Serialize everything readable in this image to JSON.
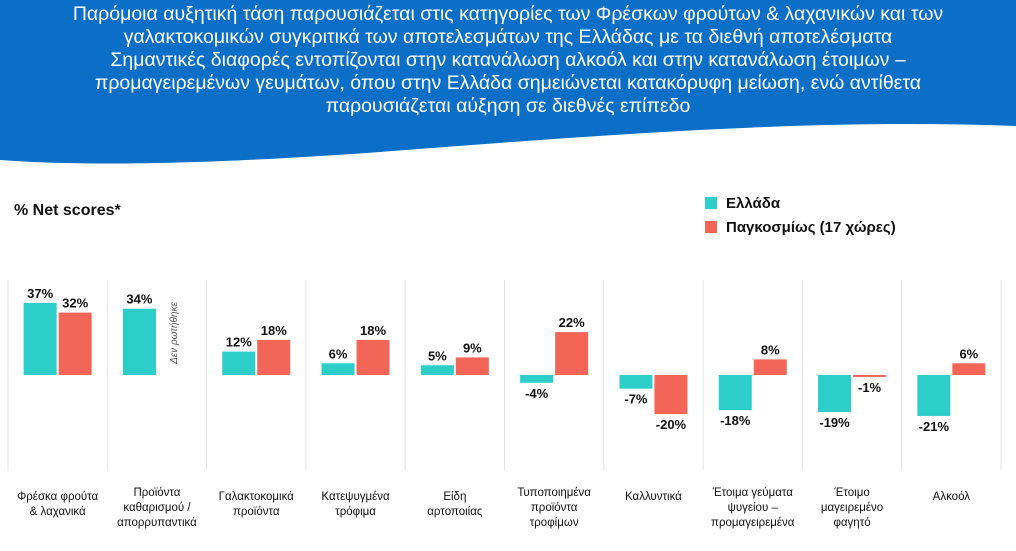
{
  "header": {
    "lines": [
      "Παρόμοια αυξητική τάση παρουσιάζεται στις κατηγορίες των Φρέσκων φρούτων & λαχανικών και των",
      "γαλακτοκομικών συγκριτικά των αποτελεσμάτων της Ελλάδας με τα διεθνή αποτελέσματα",
      "Σημαντικές διαφορές εντοπίζονται στην κατανάλωση αλκοόλ και στην κατανάλωση έτοιμων –",
      "προμαγειρεμένων γευμάτων, όπου στην Ελλάδα σημειώνεται κατακόρυφη μείωση, ενώ αντίθετα",
      "παρουσιάζεται αύξηση σε διεθνές επίπεδο"
    ]
  },
  "colors": {
    "banner": "#0B6FC7",
    "greece": "#2DCDC9",
    "global": "#F26557",
    "divider": "#E3E3E3"
  },
  "chart_data": {
    "type": "bar",
    "title": "% Net scores*",
    "categories": [
      [
        "Φρέσκα φρούτα",
        "& λαχανικά"
      ],
      [
        "Προϊόντα",
        "καθαρισμού /",
        "απορρυπαντικά"
      ],
      [
        "Γαλακτοκομικά",
        "προϊόντα"
      ],
      [
        "Κατεψυγμένα",
        "τρόφιμα"
      ],
      [
        "Είδη",
        "αρτοποιίας"
      ],
      [
        "Τυποποιημένα",
        "προϊόντα",
        "τροφίμων"
      ],
      [
        "Καλλυντικά"
      ],
      [
        "Έτοιμα γεύματα",
        "ψυγείου –",
        "προμαγειρεμένα"
      ],
      [
        "Έτοιμο",
        "μαγειρεμένο",
        "φαγητό"
      ],
      [
        "Αλκοόλ"
      ]
    ],
    "series": [
      {
        "name": "Ελλάδα",
        "values": [
          37,
          34,
          12,
          6,
          5,
          -4,
          -7,
          -18,
          -19,
          -21
        ]
      },
      {
        "name": "Παγκοσμίως (17 χώρες)",
        "values": [
          32,
          null,
          18,
          18,
          9,
          22,
          -20,
          8,
          -1,
          6
        ]
      }
    ],
    "not_asked_note": "Δεν ρωτήθηκε",
    "xlabel": "",
    "ylabel": "",
    "ylim": [
      -30,
      45
    ]
  }
}
